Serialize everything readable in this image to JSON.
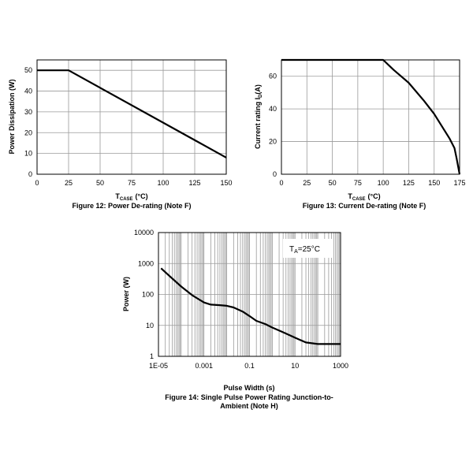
{
  "chart_data": [
    {
      "type": "line",
      "ylabel": "Power Dissipation (W)",
      "xlabel_main": "T",
      "xlabel_sub": "CASE",
      "xlabel_unit": "(°C)",
      "caption": "Figure 12: Power De-rating (Note F)",
      "xlim": [
        0,
        150
      ],
      "ylim": [
        0,
        55
      ],
      "xticks": [
        0,
        25,
        50,
        75,
        100,
        125,
        150
      ],
      "yticks": [
        0,
        10,
        20,
        30,
        40,
        50
      ],
      "grid": true,
      "x": [
        0,
        25,
        150
      ],
      "y": [
        50,
        50,
        8
      ]
    },
    {
      "type": "line",
      "ylabel_main": "Current rating I",
      "ylabel_sub": "D",
      "ylabel_unit": "(A)",
      "xlabel_main": "T",
      "xlabel_sub": "CASE",
      "xlabel_unit": "(°C)",
      "caption": "Figure 13: Current De-rating (Note F)",
      "xlim": [
        0,
        175
      ],
      "ylim": [
        0,
        70
      ],
      "xticks": [
        0,
        25,
        50,
        75,
        100,
        125,
        150,
        175
      ],
      "yticks": [
        0,
        20,
        40,
        60
      ],
      "grid": true,
      "x": [
        0,
        100,
        110,
        125,
        140,
        150,
        160,
        165,
        170,
        172,
        175
      ],
      "y": [
        70,
        70,
        64,
        56,
        45,
        37,
        27,
        22,
        16,
        10,
        0
      ]
    },
    {
      "type": "line",
      "ylabel": "Power (W)",
      "xlabel": "Pulse Width (s)",
      "caption_line1": "Figure 14: Single Pulse Power Rating Junction-to-",
      "caption_line2": "Ambient (Note H)",
      "annotation_main": "T",
      "annotation_sub": "A",
      "annotation_rest": "=25°C",
      "x_scale": "log",
      "y_scale": "log",
      "xlim": [
        1e-05,
        1000
      ],
      "ylim": [
        1,
        10000
      ],
      "xtick_labels": [
        "1E-05",
        "0.001",
        "0.1",
        "10",
        "1000"
      ],
      "ytick_labels": [
        "1",
        "10",
        "100",
        "1000",
        "10000"
      ],
      "grid": true,
      "x": [
        1.3e-05,
        3e-05,
        0.0001,
        0.0003,
        0.001,
        0.002,
        0.005,
        0.01,
        0.02,
        0.05,
        0.1,
        0.2,
        0.5,
        1,
        3,
        10,
        30,
        100,
        300,
        1000
      ],
      "y": [
        700,
        400,
        180,
        95,
        55,
        47,
        45,
        43,
        38,
        28,
        20,
        14,
        11,
        8.5,
        6,
        4,
        2.8,
        2.5,
        2.5,
        2.5
      ]
    }
  ]
}
